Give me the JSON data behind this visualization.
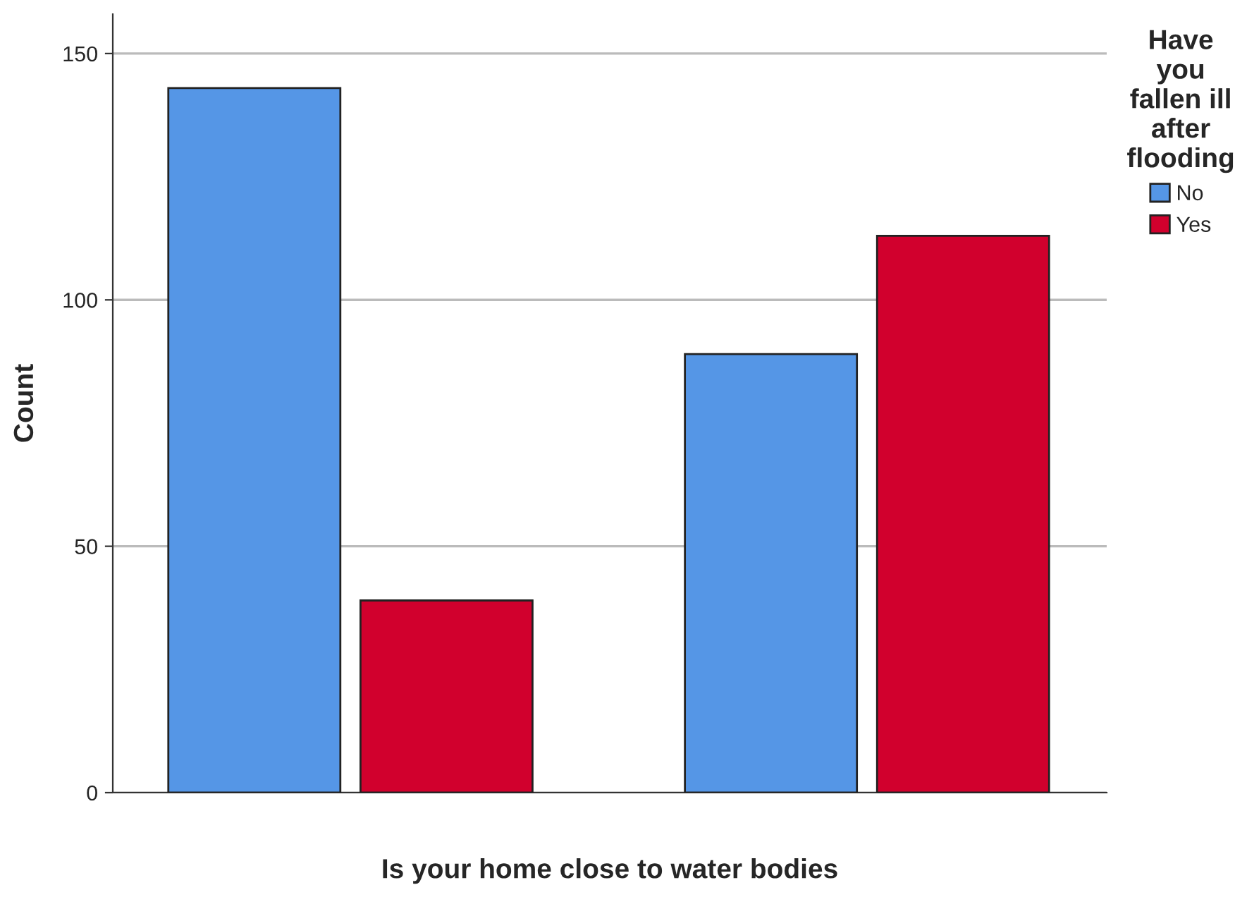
{
  "chart_data": {
    "type": "bar",
    "xlabel": "Is your home close to water bodies",
    "ylabel": "Count",
    "legend_title": "Have\nyou\nfallen ill\nafter\nflooding",
    "categories": [
      null,
      null
    ],
    "series": [
      {
        "name": "No",
        "color": "#5596e6",
        "values": [
          143,
          89
        ]
      },
      {
        "name": "Yes",
        "color": "#d1002d",
        "values": [
          39,
          113
        ]
      }
    ],
    "ylim": [
      0,
      158
    ],
    "yticks": [
      0,
      50,
      100,
      150
    ],
    "grid": "y",
    "legend": "top right"
  }
}
